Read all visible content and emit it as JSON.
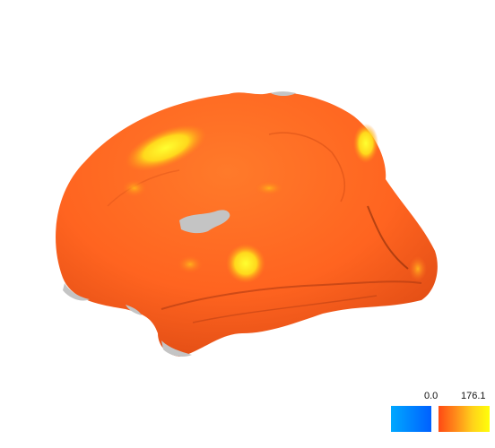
{
  "colorbar": {
    "negative": {
      "label": "0.0",
      "stops": [
        "#00a8ff",
        "#0060ff"
      ]
    },
    "positive": {
      "label": "176.1",
      "stops": [
        "#ff4a14",
        "#ff8a1a",
        "#ffd21a",
        "#ffff0a"
      ]
    }
  },
  "surface": {
    "base_color": "#ff6a20",
    "mask_color": "#c4c4c4",
    "hotspot_color": "#ffe81a"
  }
}
